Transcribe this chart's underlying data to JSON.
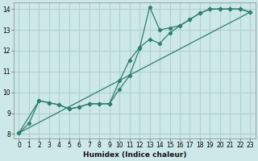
{
  "xlabel": "Humidex (Indice chaleur)",
  "ylabel": "",
  "bg_color": "#cce8e8",
  "grid_color": "#b0d0d0",
  "line_color": "#2e7d6e",
  "xlim": [
    -0.5,
    23.5
  ],
  "ylim": [
    7.8,
    14.3
  ],
  "xticks": [
    0,
    1,
    2,
    3,
    4,
    5,
    6,
    7,
    8,
    9,
    10,
    11,
    12,
    13,
    14,
    15,
    16,
    17,
    18,
    19,
    20,
    21,
    22,
    23
  ],
  "yticks": [
    8,
    9,
    10,
    11,
    12,
    13,
    14
  ],
  "line1_x": [
    0,
    1,
    2,
    3,
    4,
    5,
    6,
    7,
    8,
    9,
    10,
    11,
    12,
    13,
    14,
    15,
    16,
    17,
    18,
    19,
    20,
    21,
    22,
    23
  ],
  "line1_y": [
    8.05,
    8.5,
    9.6,
    9.5,
    9.4,
    9.2,
    9.3,
    9.45,
    9.45,
    9.45,
    10.15,
    10.8,
    12.1,
    14.1,
    13.0,
    13.1,
    13.2,
    13.5,
    13.8,
    14.0,
    14.0,
    14.0,
    14.0,
    13.85
  ],
  "line2_x": [
    0,
    2,
    3,
    4,
    5,
    6,
    7,
    8,
    9,
    10,
    11,
    12,
    13,
    14,
    15,
    16,
    17,
    18,
    19,
    20,
    21,
    22,
    23
  ],
  "line2_y": [
    8.05,
    9.6,
    9.5,
    9.4,
    9.2,
    9.3,
    9.45,
    9.45,
    9.45,
    10.55,
    11.55,
    12.15,
    12.55,
    12.35,
    12.85,
    13.2,
    13.5,
    13.8,
    14.0,
    14.0,
    14.0,
    14.0,
    13.85
  ],
  "line3_x": [
    0,
    23
  ],
  "line3_y": [
    8.05,
    13.85
  ]
}
